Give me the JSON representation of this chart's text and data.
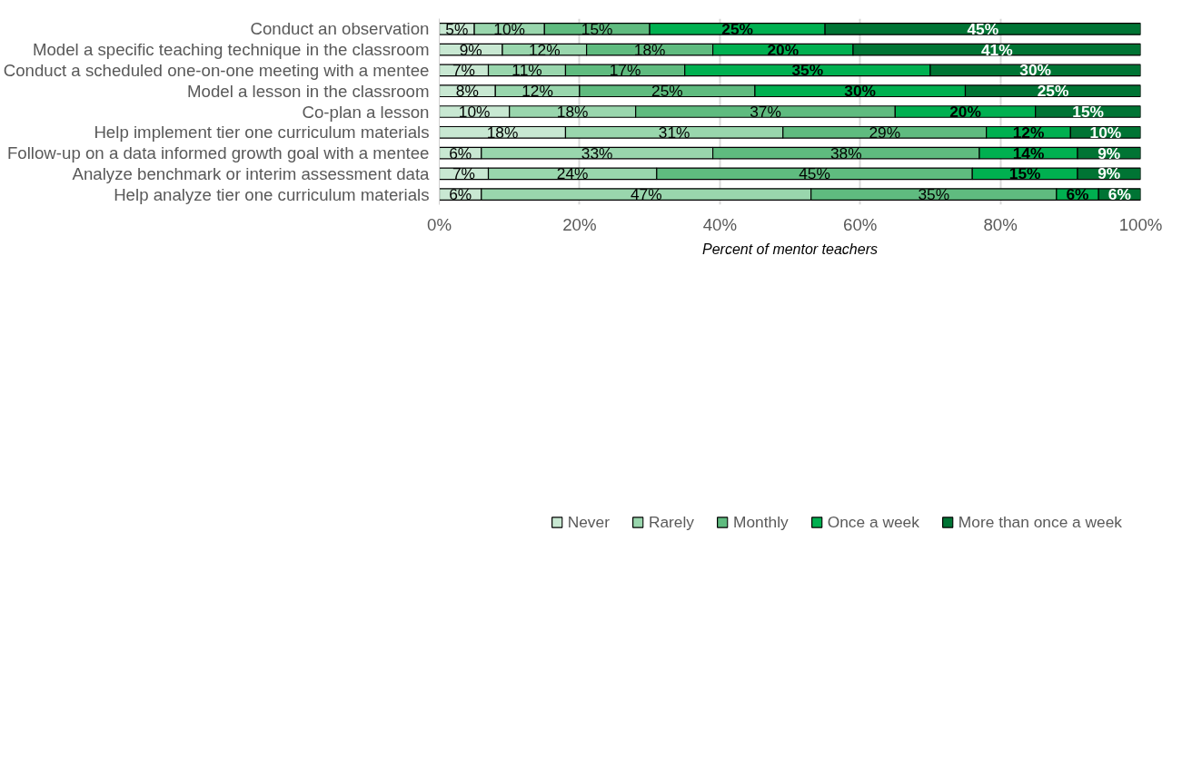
{
  "chart_data": {
    "type": "bar",
    "orientation": "horizontal",
    "stacked": true,
    "categories": [
      "Conduct an observation",
      "Model a specific teaching technique in the classroom",
      "Conduct a scheduled one-on-one meeting with a mentee",
      "Model a lesson in the classroom",
      "Co-plan a lesson",
      "Help implement tier one curriculum materials",
      "Follow-up on a data informed growth goal with a mentee",
      "Analyze benchmark or interim assessment data",
      "Help analyze tier one curriculum materials"
    ],
    "series": [
      {
        "name": "Never",
        "color": "#c8e8d2",
        "values": [
          5,
          9,
          7,
          8,
          10,
          18,
          6,
          7,
          6
        ],
        "value_labels": [
          "5%",
          "9%",
          "7%",
          "8%",
          "10%",
          "18%",
          "6%",
          "7%",
          "6%"
        ]
      },
      {
        "name": "Rarely",
        "color": "#99d6ad",
        "values": [
          10,
          12,
          11,
          12,
          18,
          31,
          33,
          24,
          47
        ],
        "value_labels": [
          "10%",
          "12%",
          "11%",
          "12%",
          "18%",
          "31%",
          "33%",
          "24%",
          "47%"
        ]
      },
      {
        "name": "Monthly",
        "color": "#5fbb7f",
        "values": [
          15,
          18,
          17,
          25,
          37,
          29,
          38,
          45,
          35
        ],
        "value_labels": [
          "15%",
          "18%",
          "17%",
          "25%",
          "37%",
          "29%",
          "38%",
          "45%",
          "35%"
        ]
      },
      {
        "name": "Once a week",
        "color": "#00b050",
        "values": [
          25,
          20,
          35,
          30,
          20,
          12,
          14,
          15,
          6
        ],
        "value_labels": [
          "25%",
          "20%",
          "35%",
          "30%",
          "20%",
          "12%",
          "14%",
          "15%",
          "6%"
        ]
      },
      {
        "name": "More than once a week",
        "color": "#007434",
        "values": [
          45,
          41,
          30,
          25,
          15,
          10,
          9,
          9,
          6
        ],
        "value_labels": [
          "45%",
          "41%",
          "30%",
          "25%",
          "15%",
          "10%",
          "9%",
          "9%",
          "6%"
        ]
      }
    ],
    "xlabel": "Percent of mentor teachers",
    "xlim": [
      0,
      100
    ],
    "xticks": [
      {
        "value": 0,
        "label": "0%"
      },
      {
        "value": 20,
        "label": "20%"
      },
      {
        "value": 40,
        "label": "40%"
      },
      {
        "value": 60,
        "label": "60%"
      },
      {
        "value": 80,
        "label": "80%"
      },
      {
        "value": 100,
        "label": "100%"
      }
    ],
    "grid": "x",
    "legend": "bottom"
  }
}
